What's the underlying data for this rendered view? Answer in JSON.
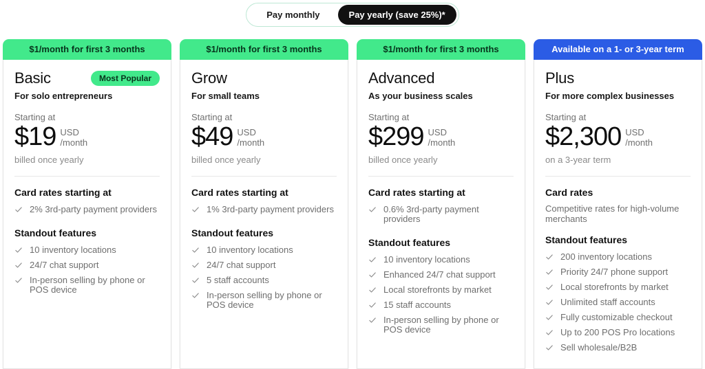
{
  "billing_toggle": {
    "monthly_label": "Pay monthly",
    "yearly_label": "Pay yearly (save 25%)*",
    "selected": "yearly"
  },
  "colors": {
    "promo_green": "#42e98b",
    "promo_blue": "#2b5ce5",
    "toggle_active_bg": "#111111",
    "check_gray": "#8d8d8d"
  },
  "icons": {
    "check": "check-icon"
  },
  "plans": [
    {
      "banner": "$1/month for first 3 months",
      "banner_color": "#42e98b",
      "name": "Basic",
      "badge": "Most Popular",
      "tagline": "For solo entrepreneurs",
      "starting_at": "Starting at",
      "price": "$19",
      "currency": "USD",
      "period": "/month",
      "billing_note": "billed once yearly",
      "rates_heading": "Card rates starting at",
      "rates_items": [
        "2% 3rd-party payment providers"
      ],
      "features_heading": "Standout features",
      "features": [
        "10 inventory locations",
        "24/7 chat support",
        "In-person selling by phone or POS device"
      ]
    },
    {
      "banner": "$1/month for first 3 months",
      "banner_color": "#42e98b",
      "name": "Grow",
      "tagline": "For small teams",
      "starting_at": "Starting at",
      "price": "$49",
      "currency": "USD",
      "period": "/month",
      "billing_note": "billed once yearly",
      "rates_heading": "Card rates starting at",
      "rates_items": [
        "1% 3rd-party payment providers"
      ],
      "features_heading": "Standout features",
      "features": [
        "10 inventory locations",
        "24/7 chat support",
        "5 staff accounts",
        "In-person selling by phone or POS device"
      ]
    },
    {
      "banner": "$1/month for first 3 months",
      "banner_color": "#42e98b",
      "name": "Advanced",
      "tagline": "As your business scales",
      "starting_at": "Starting at",
      "price": "$299",
      "currency": "USD",
      "period": "/month",
      "billing_note": "billed once yearly",
      "rates_heading": "Card rates starting at",
      "rates_items": [
        "0.6% 3rd-party payment providers"
      ],
      "features_heading": "Standout features",
      "features": [
        "10 inventory locations",
        "Enhanced 24/7 chat support",
        "Local storefronts by market",
        "15 staff accounts",
        "In-person selling by phone or POS device"
      ]
    },
    {
      "banner": "Available on a 1- or 3-year term",
      "banner_color": "#2b5ce5",
      "name": "Plus",
      "tagline": "For more complex businesses",
      "starting_at": "Starting at",
      "price": "$2,300",
      "currency": "USD",
      "period": "/month",
      "billing_note": "on a 3-year term",
      "rates_heading": "Card rates",
      "rates_note": "Competitive rates for high-volume merchants",
      "features_heading": "Standout features",
      "features": [
        "200 inventory locations",
        "Priority 24/7 phone support",
        "Local storefronts by market",
        "Unlimited staff accounts",
        "Fully customizable checkout",
        "Up to 200 POS Pro locations",
        "Sell wholesale/B2B"
      ]
    }
  ]
}
